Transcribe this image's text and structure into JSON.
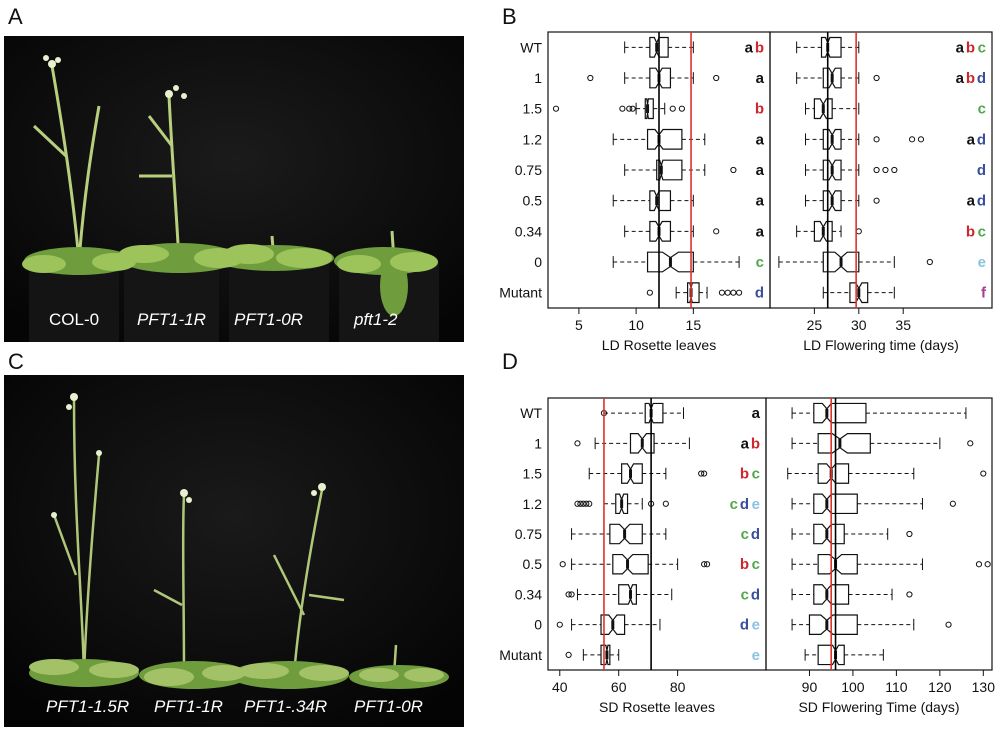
{
  "panels": {
    "a": {
      "label": "A",
      "captions": [
        "COL-0",
        "PFT1-1R",
        "PFT1-0R",
        "pft1-2"
      ]
    },
    "b": {
      "label": "B"
    },
    "c": {
      "label": "C",
      "captions": [
        "PFT1-1.5R",
        "PFT1-1R",
        "PFT1-.34R",
        "PFT1-0R"
      ]
    },
    "d": {
      "label": "D"
    }
  },
  "colors": {
    "a": "#111111",
    "b": "#d0262b",
    "c": "#52a74a",
    "d": "#3a4f9b",
    "e": "#8cc2e0",
    "f": "#a23d96",
    "ref_black": "#000000",
    "ref_red": "#e0302a"
  },
  "chart_data": [
    {
      "type": "boxplot",
      "panel": "B",
      "categories": [
        "WT",
        "1",
        "1.5",
        "1.2",
        "0.75",
        "0.5",
        "0.34",
        "0",
        "Mutant"
      ],
      "charts": [
        {
          "xlabel": "LD Rosette leaves",
          "xlim": [
            2.3,
            21.7
          ],
          "ticks": [
            5,
            10,
            15
          ],
          "ref_lines": {
            "black": 12,
            "red": 14.8
          },
          "boxes": [
            {
              "min": 9,
              "q1": 11.2,
              "med": 11.8,
              "q3": 12.8,
              "max": 15,
              "out": []
            },
            {
              "min": 9,
              "q1": 11.2,
              "med": 12,
              "q3": 13,
              "max": 15,
              "out": [
                6,
                17
              ]
            },
            {
              "min": 10,
              "q1": 10.8,
              "med": 11,
              "q3": 11.5,
              "max": 12.5,
              "out": [
                3,
                8.8,
                9.4,
                9.7,
                13.2,
                14
              ]
            },
            {
              "min": 8,
              "q1": 11,
              "med": 12,
              "q3": 14,
              "max": 16,
              "out": []
            },
            {
              "min": 9,
              "q1": 11.8,
              "med": 12.2,
              "q3": 14,
              "max": 16,
              "out": [
                18.5
              ]
            },
            {
              "min": 8,
              "q1": 11.2,
              "med": 11.8,
              "q3": 13,
              "max": 15,
              "out": []
            },
            {
              "min": 9,
              "q1": 11.2,
              "med": 12,
              "q3": 13,
              "max": 15,
              "out": [
                17
              ]
            },
            {
              "min": 8,
              "q1": 11,
              "med": 13,
              "q3": 15,
              "max": 19,
              "out": []
            },
            {
              "min": 13.5,
              "q1": 14.5,
              "med": 14.8,
              "q3": 15.5,
              "max": 16.2,
              "out": [
                11.2,
                17.5,
                18,
                18.5,
                19
              ]
            }
          ],
          "letters": [
            [
              {
                "t": "a",
                "c": "a"
              },
              {
                "t": "b",
                "c": "b"
              }
            ],
            [
              {
                "t": "a",
                "c": "a"
              }
            ],
            [
              {
                "t": "b",
                "c": "b"
              }
            ],
            [
              {
                "t": "a",
                "c": "a"
              }
            ],
            [
              {
                "t": "a",
                "c": "a"
              }
            ],
            [
              {
                "t": "a",
                "c": "a"
              }
            ],
            [
              {
                "t": "a",
                "c": "a"
              }
            ],
            [
              {
                "t": "c",
                "c": "c"
              }
            ],
            [
              {
                "t": "d",
                "c": "d"
              }
            ]
          ]
        },
        {
          "xlabel": "LD Flowering time (days)",
          "xlim": [
            20,
            45
          ],
          "ticks": [
            25,
            30,
            35
          ],
          "ref_lines": {
            "black": 26.5,
            "red": 29.7
          },
          "boxes": [
            {
              "min": 23,
              "q1": 25.8,
              "med": 26.5,
              "q3": 28,
              "max": 30,
              "out": []
            },
            {
              "min": 23,
              "q1": 26,
              "med": 27,
              "q3": 28,
              "max": 30,
              "out": [
                32
              ]
            },
            {
              "min": 24,
              "q1": 25,
              "med": 26,
              "q3": 27,
              "max": 30,
              "out": []
            },
            {
              "min": 24,
              "q1": 26,
              "med": 27,
              "q3": 28,
              "max": 30,
              "out": [
                32,
                36,
                37
              ]
            },
            {
              "min": 24,
              "q1": 26,
              "med": 27,
              "q3": 28,
              "max": 30,
              "out": [
                32,
                33,
                34
              ]
            },
            {
              "min": 24,
              "q1": 26,
              "med": 27,
              "q3": 28,
              "max": 30,
              "out": [
                32
              ]
            },
            {
              "min": 23,
              "q1": 25,
              "med": 26,
              "q3": 27,
              "max": 28,
              "out": [
                30
              ]
            },
            {
              "min": 21,
              "q1": 26,
              "med": 28,
              "q3": 30,
              "max": 34,
              "out": [
                38
              ]
            },
            {
              "min": 26,
              "q1": 29,
              "med": 30,
              "q3": 31,
              "max": 34,
              "out": []
            }
          ],
          "letters": [
            [
              {
                "t": "a",
                "c": "a"
              },
              {
                "t": "b",
                "c": "b"
              },
              {
                "t": "c",
                "c": "c"
              }
            ],
            [
              {
                "t": "a",
                "c": "a"
              },
              {
                "t": "b",
                "c": "b"
              },
              {
                "t": "d",
                "c": "d"
              }
            ],
            [
              {
                "t": "c",
                "c": "c"
              }
            ],
            [
              {
                "t": "a",
                "c": "a"
              },
              {
                "t": "d",
                "c": "d"
              }
            ],
            [
              {
                "t": "d",
                "c": "d"
              }
            ],
            [
              {
                "t": "a",
                "c": "a"
              },
              {
                "t": "d",
                "c": "d"
              }
            ],
            [
              {
                "t": "b",
                "c": "b"
              },
              {
                "t": "c",
                "c": "c"
              }
            ],
            [
              {
                "t": "e",
                "c": "e"
              }
            ],
            [
              {
                "t": "f",
                "c": "f"
              }
            ]
          ]
        }
      ]
    },
    {
      "type": "boxplot",
      "panel": "D",
      "categories": [
        "WT",
        "1",
        "1.5",
        "1.2",
        "0.75",
        "0.5",
        "0.34",
        "0",
        "Mutant"
      ],
      "charts": [
        {
          "xlabel": "SD Rosette leaves",
          "xlim": [
            36,
            110
          ],
          "ticks": [
            40,
            60,
            80
          ],
          "ref_lines": {
            "black": 71,
            "red": 55
          },
          "boxes": [
            {
              "min": 55,
              "q1": 69,
              "med": 71,
              "q3": 75,
              "max": 82,
              "out": [
                55
              ]
            },
            {
              "min": 52,
              "q1": 64,
              "med": 68,
              "q3": 72,
              "max": 84,
              "out": [
                46
              ]
            },
            {
              "min": 50,
              "q1": 61,
              "med": 64,
              "q3": 68,
              "max": 76,
              "out": [
                88,
                89
              ]
            },
            {
              "min": 55,
              "q1": 59,
              "med": 61,
              "q3": 63,
              "max": 68,
              "out": [
                46,
                47,
                48,
                49,
                50,
                71,
                76
              ]
            },
            {
              "min": 44,
              "q1": 57,
              "med": 62,
              "q3": 68,
              "max": 76,
              "out": []
            },
            {
              "min": 44,
              "q1": 58,
              "med": 63,
              "q3": 70,
              "max": 80,
              "out": [
                41,
                89,
                90
              ]
            },
            {
              "min": 46,
              "q1": 60,
              "med": 64,
              "q3": 66,
              "max": 78,
              "out": [
                43,
                44
              ]
            },
            {
              "min": 44,
              "q1": 54,
              "med": 58,
              "q3": 62,
              "max": 74,
              "out": [
                40
              ]
            },
            {
              "min": 48,
              "q1": 54,
              "med": 56,
              "q3": 57,
              "max": 60,
              "out": [
                43
              ]
            }
          ],
          "letters": [
            [
              {
                "t": "a",
                "c": "a"
              }
            ],
            [
              {
                "t": "a",
                "c": "a"
              },
              {
                "t": "b",
                "c": "b"
              }
            ],
            [
              {
                "t": "b",
                "c": "b"
              },
              {
                "t": "c",
                "c": "c"
              }
            ],
            [
              {
                "t": "c",
                "c": "c"
              },
              {
                "t": "d",
                "c": "d"
              },
              {
                "t": "e",
                "c": "e"
              }
            ],
            [
              {
                "t": "c",
                "c": "c"
              },
              {
                "t": "d",
                "c": "d"
              }
            ],
            [
              {
                "t": "b",
                "c": "b"
              },
              {
                "t": "c",
                "c": "c"
              }
            ],
            [
              {
                "t": "c",
                "c": "c"
              },
              {
                "t": "d",
                "c": "d"
              }
            ],
            [
              {
                "t": "d",
                "c": "d"
              },
              {
                "t": "e",
                "c": "e"
              }
            ],
            [
              {
                "t": "e",
                "c": "e"
              }
            ]
          ]
        },
        {
          "xlabel": "SD Flowering Time (days)",
          "xlim": [
            80,
            132
          ],
          "ticks": [
            90,
            100,
            110,
            120,
            130
          ],
          "ref_lines": {
            "black": 96,
            "red": 95
          },
          "boxes": [
            {
              "min": 86,
              "q1": 91,
              "med": 94,
              "q3": 103,
              "max": 126,
              "out": []
            },
            {
              "min": 86,
              "q1": 92,
              "med": 97,
              "q3": 104,
              "max": 120,
              "out": [
                127
              ]
            },
            {
              "min": 85,
              "q1": 92,
              "med": 95,
              "q3": 99,
              "max": 114,
              "out": [
                130
              ]
            },
            {
              "min": 86,
              "q1": 91,
              "med": 94,
              "q3": 101,
              "max": 116,
              "out": [
                123
              ]
            },
            {
              "min": 86,
              "q1": 91,
              "med": 94,
              "q3": 98,
              "max": 108,
              "out": [
                113
              ]
            },
            {
              "min": 86,
              "q1": 92,
              "med": 96,
              "q3": 101,
              "max": 116,
              "out": [
                129,
                131
              ]
            },
            {
              "min": 86,
              "q1": 91,
              "med": 94,
              "q3": 99,
              "max": 109,
              "out": [
                113
              ]
            },
            {
              "min": 86,
              "q1": 90,
              "med": 94,
              "q3": 101,
              "max": 114,
              "out": [
                122
              ]
            },
            {
              "min": 89,
              "q1": 92,
              "med": 96,
              "q3": 98,
              "max": 107,
              "out": []
            }
          ],
          "letters": [
            [],
            [],
            [],
            [],
            [],
            [],
            [],
            [],
            []
          ]
        }
      ]
    }
  ]
}
